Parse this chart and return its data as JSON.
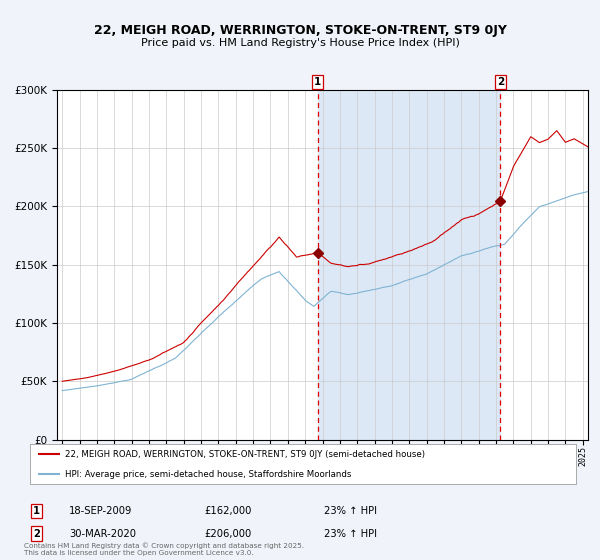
{
  "title": "22, MEIGH ROAD, WERRINGTON, STOKE-ON-TRENT, ST9 0JY",
  "subtitle": "Price paid vs. HM Land Registry's House Price Index (HPI)",
  "legend_line1": "22, MEIGH ROAD, WERRINGTON, STOKE-ON-TRENT, ST9 0JY (semi-detached house)",
  "legend_line2": "HPI: Average price, semi-detached house, Staffordshire Moorlands",
  "transaction1_date": "18-SEP-2009",
  "transaction1_price": "£162,000",
  "transaction1_note": "23% ↑ HPI",
  "transaction2_date": "30-MAR-2020",
  "transaction2_price": "£206,000",
  "transaction2_note": "23% ↑ HPI",
  "footnote": "Contains HM Land Registry data © Crown copyright and database right 2025.\nThis data is licensed under the Open Government Licence v3.0.",
  "background_color": "#f0f4fa",
  "plot_bg_color": "#ffffff",
  "shaded_region_color": "#dce8f5",
  "red_line_color": "#cc0000",
  "blue_line_color": "#7fb3d3",
  "marker_color": "#8b0000",
  "dashed_line_color": "#dd0000",
  "grid_color": "#cccccc",
  "ylim": [
    0,
    300000
  ],
  "ytick_step": 50000,
  "x_start_year": 1995,
  "x_end_year": 2025,
  "transaction1_year": 2009.72,
  "transaction2_year": 2020.25,
  "transaction1_price_val": 162000,
  "transaction2_price_val": 206000
}
